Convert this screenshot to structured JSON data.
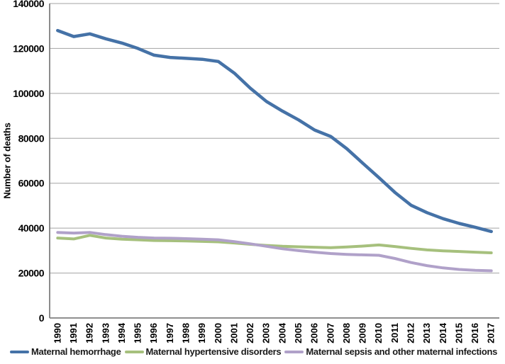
{
  "chart_data": {
    "type": "line",
    "title": "",
    "xlabel": "",
    "ylabel": "Number of deaths",
    "ylim": [
      0,
      140000
    ],
    "ytick_step": 20000,
    "grid": true,
    "legend_position": "bottom",
    "categories": [
      "1990",
      "1991",
      "1992",
      "1993",
      "1994",
      "1995",
      "1996",
      "1997",
      "1998",
      "1999",
      "2000",
      "2001",
      "2002",
      "2003",
      "2004",
      "2005",
      "2006",
      "2007",
      "2008",
      "2009",
      "2010",
      "2011",
      "2012",
      "2013",
      "2014",
      "2015",
      "2016",
      "2017"
    ],
    "series": [
      {
        "name": "Maternal hemorrhage",
        "color": "#4572A7",
        "values": [
          128000,
          125300,
          126500,
          124300,
          122400,
          120000,
          117000,
          116000,
          115600,
          115200,
          114200,
          109000,
          102300,
          96400,
          92100,
          88200,
          83700,
          80800,
          75400,
          68900,
          62500,
          55900,
          50200,
          46900,
          44200,
          42100,
          40400,
          38500
        ]
      },
      {
        "name": "Maternal hypertensive disorders",
        "color": "#A6C07D",
        "values": [
          35600,
          35200,
          36800,
          35600,
          35100,
          34800,
          34500,
          34400,
          34300,
          34100,
          33900,
          33400,
          32800,
          32300,
          31900,
          31700,
          31500,
          31300,
          31600,
          32000,
          32500,
          31800,
          31000,
          30300,
          29900,
          29600,
          29300,
          29000
        ]
      },
      {
        "name": "Maternal sepsis and other maternal infections",
        "color": "#B0A1C9",
        "values": [
          38100,
          37800,
          38100,
          37100,
          36400,
          35900,
          35600,
          35500,
          35300,
          35100,
          34800,
          34000,
          33000,
          31900,
          30800,
          30000,
          29300,
          28700,
          28300,
          28100,
          27900,
          26500,
          24700,
          23300,
          22300,
          21600,
          21200,
          21000
        ]
      }
    ]
  },
  "axis_style": {
    "grid_color": "#A3A3A3",
    "axis_color": "#7F7F7F",
    "tick_label_color": "#000000"
  }
}
